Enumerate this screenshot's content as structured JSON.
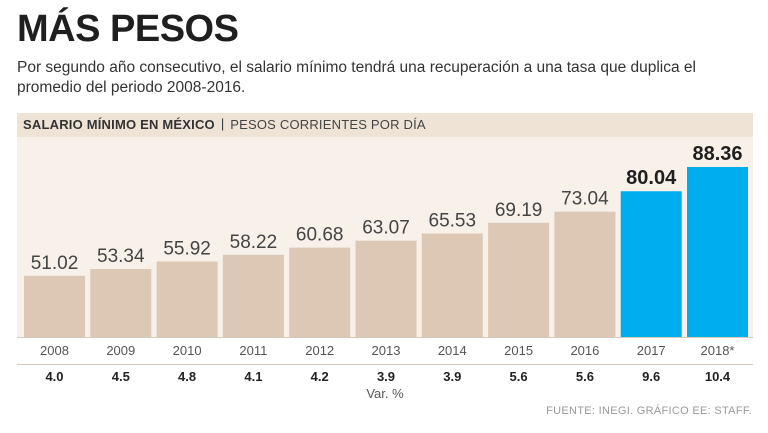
{
  "header": {
    "title": "MÁS PESOS",
    "subtitle": "Por segundo año consecutivo, el salario mínimo tendrá una recuperación a una tasa que duplica el promedio del periodo 2008-2016."
  },
  "label_band": {
    "main": "SALARIO MÍNIMO EN MÉXICO",
    "separator": "|",
    "sub": "PESOS CORRIENTES POR DÍA"
  },
  "footer": {
    "var_label": "Var. %",
    "source": "FUENTE: INEGI. GRÁFICO EE: STAFF."
  },
  "colors": {
    "bar_regular": "#dcc8b4",
    "bar_highlight": "#00aeef",
    "band": "#efe3d6",
    "chart_bg": "#f7f1ea"
  },
  "chart_data": {
    "type": "bar",
    "title": "SALARIO MÍNIMO EN MÉXICO",
    "ylabel": "PESOS CORRIENTES POR DÍA",
    "xlabel": "",
    "categories": [
      "2008",
      "2009",
      "2010",
      "2011",
      "2012",
      "2013",
      "2014",
      "2015",
      "2016",
      "2017",
      "2018*"
    ],
    "values": [
      51.02,
      53.34,
      55.92,
      58.22,
      60.68,
      63.07,
      65.53,
      69.19,
      73.04,
      80.04,
      88.36
    ],
    "value_labels": [
      "51.02",
      "53.34",
      "55.92",
      "58.22",
      "60.68",
      "63.07",
      "65.53",
      "69.19",
      "73.04",
      "80.04",
      "88.36"
    ],
    "variation_pct": [
      "4.0",
      "4.5",
      "4.8",
      "4.1",
      "4.2",
      "3.9",
      "3.9",
      "5.6",
      "5.6",
      "9.6",
      "10.4"
    ],
    "highlight": [
      false,
      false,
      false,
      false,
      false,
      false,
      false,
      false,
      false,
      true,
      true
    ],
    "ylim": [
      0,
      100
    ]
  }
}
